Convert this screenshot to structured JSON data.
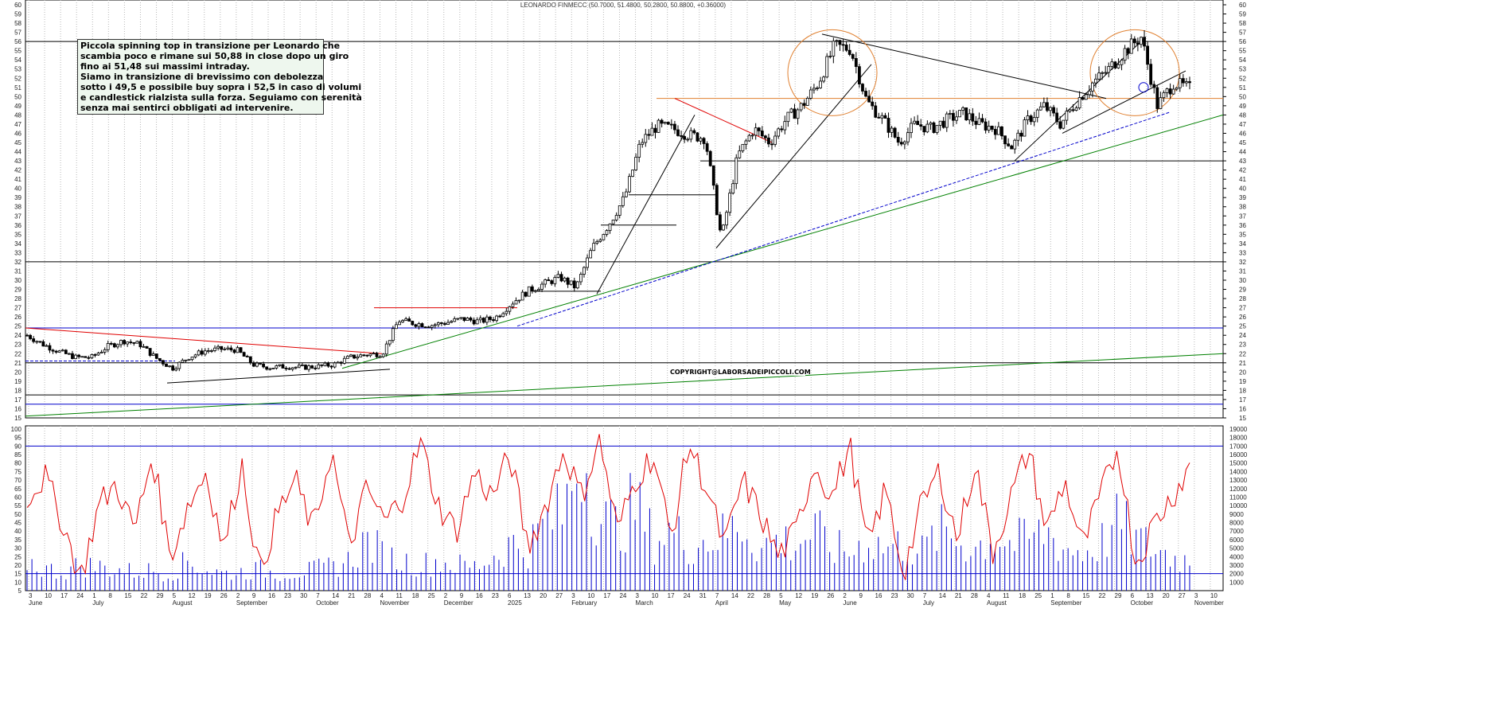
{
  "chart_title": "LEONARDO FINMECC (50.7000, 51.4800, 50.2800, 50.8800, +0.36000)",
  "note_lines": [
    "Piccola spinning top in transizione per Leonardo che",
    "scambia poco e rimane sui 50,88 in close dopo un giro",
    "fino ai 51,48 sui massimi intraday.",
    "Siamo in transizione di brevissimo con debolezza",
    "sotto i 49,5 e possibile buy sopra i 52,5 in caso di volumi",
    "e candlestick rialzista sulla forza. Seguiamo con serenità",
    "senza mai sentirci obbligati ad intervenire."
  ],
  "copyright": "COPYRIGHT@LABORSADEIPICCOLI.COM",
  "colors": {
    "candle": "#000000",
    "support_resistance": "#0000cc",
    "trend_green": "#008000",
    "trend_red": "#e00000",
    "orange": "#e08030",
    "oscillator": "#e00000",
    "volume": "#0000cc"
  },
  "chart_data": [
    {
      "type": "line",
      "panel": "price",
      "subtype": "candlestick",
      "ylim": [
        15,
        60
      ],
      "yticks": [
        15,
        16,
        17,
        18,
        19,
        20,
        21,
        22,
        23,
        24,
        25,
        26,
        27,
        28,
        29,
        30,
        31,
        32,
        33,
        34,
        35,
        36,
        37,
        38,
        39,
        40,
        41,
        42,
        43,
        44,
        45,
        46,
        47,
        48,
        49,
        50,
        51,
        52,
        53,
        54,
        55,
        56,
        57,
        58,
        59,
        60
      ],
      "last_ohlc": {
        "open": 50.7,
        "high": 51.48,
        "low": 50.28,
        "close": 50.88,
        "change": 0.36
      },
      "close_path": [
        {
          "x": "2024-06-03",
          "y": 24.0
        },
        {
          "x": "2024-06-10",
          "y": 23.0
        },
        {
          "x": "2024-06-17",
          "y": 22.2
        },
        {
          "x": "2024-06-24",
          "y": 21.6
        },
        {
          "x": "2024-07-01",
          "y": 21.6
        },
        {
          "x": "2024-07-08",
          "y": 22.8
        },
        {
          "x": "2024-07-15",
          "y": 23.4
        },
        {
          "x": "2024-07-22",
          "y": 23.0
        },
        {
          "x": "2024-07-29",
          "y": 21.5
        },
        {
          "x": "2024-08-05",
          "y": 20.4
        },
        {
          "x": "2024-08-12",
          "y": 21.6
        },
        {
          "x": "2024-08-19",
          "y": 22.3
        },
        {
          "x": "2024-08-26",
          "y": 22.5
        },
        {
          "x": "2024-09-02",
          "y": 22.4
        },
        {
          "x": "2024-09-09",
          "y": 20.8
        },
        {
          "x": "2024-09-16",
          "y": 20.5
        },
        {
          "x": "2024-09-23",
          "y": 20.6
        },
        {
          "x": "2024-09-30",
          "y": 20.5
        },
        {
          "x": "2024-10-07",
          "y": 20.6
        },
        {
          "x": "2024-10-14",
          "y": 20.8
        },
        {
          "x": "2024-10-21",
          "y": 21.6
        },
        {
          "x": "2024-10-28",
          "y": 21.9
        },
        {
          "x": "2024-11-04",
          "y": 22.0
        },
        {
          "x": "2024-11-11",
          "y": 25.6
        },
        {
          "x": "2024-11-18",
          "y": 25.3
        },
        {
          "x": "2024-11-25",
          "y": 25.1
        },
        {
          "x": "2024-12-02",
          "y": 25.4
        },
        {
          "x": "2024-12-09",
          "y": 25.8
        },
        {
          "x": "2024-12-16",
          "y": 25.5
        },
        {
          "x": "2024-12-23",
          "y": 25.9
        },
        {
          "x": "2025-01-06",
          "y": 27.5
        },
        {
          "x": "2025-01-13",
          "y": 28.8
        },
        {
          "x": "2025-01-20",
          "y": 29.6
        },
        {
          "x": "2025-01-27",
          "y": 30.3
        },
        {
          "x": "2025-02-03",
          "y": 29.2
        },
        {
          "x": "2025-02-10",
          "y": 33.5
        },
        {
          "x": "2025-02-17",
          "y": 36.0
        },
        {
          "x": "2025-02-24",
          "y": 39.0
        },
        {
          "x": "2025-03-03",
          "y": 45.0
        },
        {
          "x": "2025-03-10",
          "y": 46.8
        },
        {
          "x": "2025-03-17",
          "y": 46.5
        },
        {
          "x": "2025-03-24",
          "y": 45.8
        },
        {
          "x": "2025-03-31",
          "y": 45.5
        },
        {
          "x": "2025-04-07",
          "y": 34.5
        },
        {
          "x": "2025-04-14",
          "y": 43.5
        },
        {
          "x": "2025-04-21",
          "y": 46.5
        },
        {
          "x": "2025-04-28",
          "y": 45.0
        },
        {
          "x": "2025-05-05",
          "y": 47.5
        },
        {
          "x": "2025-05-12",
          "y": 49.0
        },
        {
          "x": "2025-05-19",
          "y": 51.5
        },
        {
          "x": "2025-05-26",
          "y": 55.5
        },
        {
          "x": "2025-06-02",
          "y": 55.2
        },
        {
          "x": "2025-06-09",
          "y": 49.5
        },
        {
          "x": "2025-06-16",
          "y": 47.5
        },
        {
          "x": "2025-06-23",
          "y": 45.0
        },
        {
          "x": "2025-06-30",
          "y": 47.0
        },
        {
          "x": "2025-07-07",
          "y": 46.5
        },
        {
          "x": "2025-07-14",
          "y": 47.5
        },
        {
          "x": "2025-07-21",
          "y": 48.2
        },
        {
          "x": "2025-07-28",
          "y": 47.0
        },
        {
          "x": "2025-08-04",
          "y": 46.5
        },
        {
          "x": "2025-08-11",
          "y": 44.5
        },
        {
          "x": "2025-08-18",
          "y": 47.5
        },
        {
          "x": "2025-08-25",
          "y": 49.0
        },
        {
          "x": "2025-09-01",
          "y": 47.0
        },
        {
          "x": "2025-09-08",
          "y": 49.5
        },
        {
          "x": "2025-09-15",
          "y": 51.5
        },
        {
          "x": "2025-09-22",
          "y": 53.0
        },
        {
          "x": "2025-09-29",
          "y": 55.0
        },
        {
          "x": "2025-10-06",
          "y": 56.5
        },
        {
          "x": "2025-10-13",
          "y": 49.0
        },
        {
          "x": "2025-10-20",
          "y": 51.5
        },
        {
          "x": "2025-10-27",
          "y": 50.88
        }
      ]
    },
    {
      "type": "line",
      "panel": "oscillator",
      "ylim": [
        5,
        100
      ],
      "yticks": [
        5,
        10,
        15,
        20,
        25,
        30,
        35,
        40,
        45,
        50,
        55,
        60,
        65,
        70,
        75,
        80,
        85,
        90,
        95,
        100
      ],
      "reference_lines": [
        90,
        15
      ],
      "values": [
        60,
        72,
        45,
        12,
        55,
        68,
        40,
        85,
        25,
        55,
        75,
        30,
        80,
        15,
        50,
        70,
        40,
        88,
        30,
        65,
        45,
        60,
        92,
        55,
        40,
        75,
        60,
        85,
        30,
        55,
        88,
        60,
        95,
        40,
        70,
        85,
        35,
        92,
        65,
        30,
        70,
        50,
        25,
        40,
        80,
        60,
        90,
        30,
        65,
        15,
        55,
        75,
        35,
        80,
        28,
        60,
        88,
        40,
        70,
        30,
        60,
        90,
        20,
        45,
        60,
        78
      ]
    },
    {
      "type": "bar",
      "panel": "volume",
      "ylim": [
        0,
        19000
      ],
      "yticks": [
        1000,
        2000,
        3000,
        4000,
        5000,
        6000,
        7000,
        8000,
        9000,
        10000,
        11000,
        12000,
        13000,
        14000,
        15000,
        16000,
        17000,
        18000,
        19000
      ],
      "values": [
        3500,
        2500,
        2200,
        3000,
        2800,
        2500,
        2200,
        2400,
        2000,
        3500,
        2500,
        2000,
        2200,
        2500,
        2000,
        2200,
        2400,
        2800,
        3500,
        6000,
        4000,
        3500,
        3000,
        3500,
        3000,
        2800,
        4000,
        5500,
        5000,
        8000,
        9000,
        17000,
        8500,
        7500,
        10000,
        6000,
        7000,
        5500,
        6000,
        6500,
        8000,
        5000,
        6000,
        5500,
        7000,
        5000,
        4500,
        6000,
        5000,
        5500,
        4500,
        7000,
        6000,
        5000,
        6500,
        5500,
        6000,
        7000,
        5000,
        4500,
        5500,
        8000,
        6000,
        5000,
        4000,
        3500
      ]
    },
    {
      "type": "line",
      "panel": "x-axis",
      "tick_labels": [
        "3",
        "10",
        "17",
        "24",
        "1",
        "8",
        "15",
        "22",
        "29",
        "5",
        "12",
        "19",
        "26",
        "2",
        "9",
        "16",
        "23",
        "30",
        "7",
        "14",
        "21",
        "28",
        "4",
        "11",
        "18",
        "25",
        "2",
        "9",
        "16",
        "23",
        "6",
        "13",
        "20",
        "27",
        "3",
        "10",
        "17",
        "24",
        "3",
        "10",
        "17",
        "24",
        "31",
        "7",
        "14",
        "22",
        "28",
        "5",
        "12",
        "19",
        "26",
        "2",
        "9",
        "16",
        "23",
        "30",
        "7",
        "14",
        "21",
        "28",
        "4",
        "11",
        "18",
        "25",
        "1",
        "8",
        "15",
        "22",
        "29",
        "6",
        "13",
        "20",
        "27",
        "3",
        "10"
      ],
      "month_labels": [
        "June",
        "July",
        "August",
        "September",
        "October",
        "November",
        "December",
        "2025",
        "February",
        "March",
        "April",
        "May",
        "June",
        "July",
        "August",
        "September",
        "October",
        "November"
      ]
    }
  ]
}
